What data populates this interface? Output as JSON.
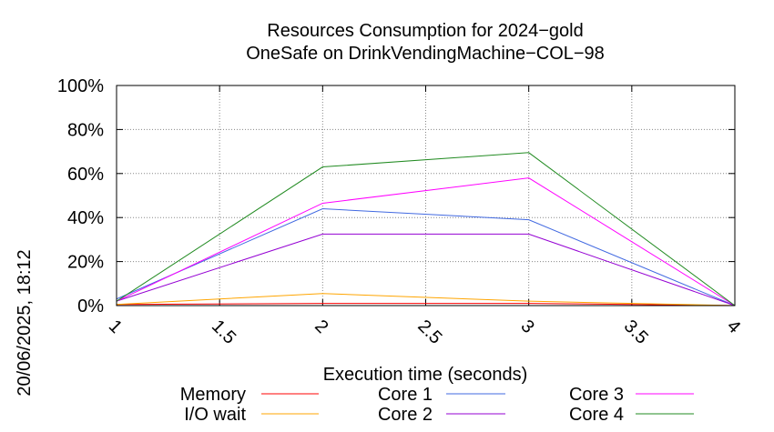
{
  "chart_data": {
    "type": "line",
    "title": "Resources Consumption for 2024−gold",
    "subtitle": "OneSafe on DrinkVendingMachine−COL−98",
    "xlabel": "Execution time (seconds)",
    "ylabel": "",
    "side_label": "20/06/2025, 18:12",
    "xlim": [
      1,
      4
    ],
    "ylim": [
      0,
      100
    ],
    "x_ticks": [
      "1",
      "1.5",
      "2",
      "2.5",
      "3",
      "3.5",
      "4"
    ],
    "y_ticks": [
      "0%",
      "20%",
      "40%",
      "60%",
      "80%",
      "100%"
    ],
    "grid": true,
    "legend_position": "bottom",
    "x": [
      1,
      2,
      3,
      4
    ],
    "series": [
      {
        "name": "Memory",
        "color": "#ff0000",
        "values": [
          0.5,
          1,
          1,
          0
        ]
      },
      {
        "name": "I/O wait",
        "color": "#ffa500",
        "values": [
          0.5,
          5.5,
          2,
          0
        ]
      },
      {
        "name": "Core 1",
        "color": "#4169e1",
        "values": [
          3,
          44,
          39,
          0
        ]
      },
      {
        "name": "Core 2",
        "color": "#9400d3",
        "values": [
          2,
          32.5,
          32.5,
          0
        ]
      },
      {
        "name": "Core 3",
        "color": "#ff00ff",
        "values": [
          2,
          46.5,
          58,
          0
        ]
      },
      {
        "name": "Core 4",
        "color": "#228b22",
        "values": [
          2,
          63,
          69.5,
          0
        ]
      }
    ]
  }
}
